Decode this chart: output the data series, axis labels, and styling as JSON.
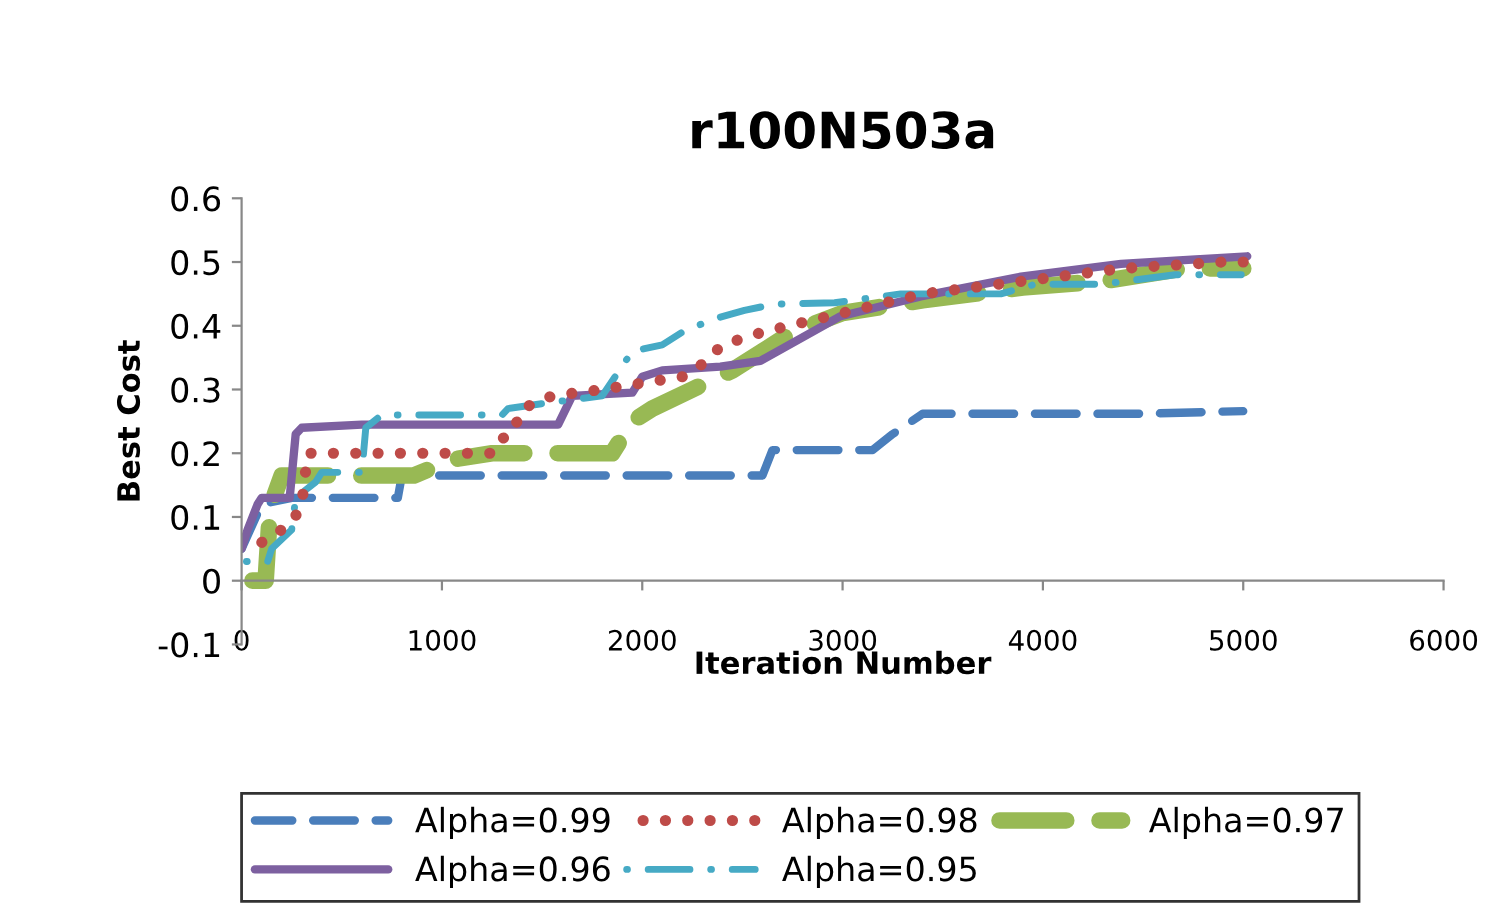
{
  "chart_data": {
    "type": "line",
    "title": "r100N503a",
    "xlabel": "Iteration Number",
    "ylabel": "Best Cost",
    "xlim": [
      0,
      6000
    ],
    "xticks": [
      0,
      1000,
      2000,
      3000,
      4000,
      5000,
      6000
    ],
    "ylim": [
      -0.1,
      0.6
    ],
    "yticks": [
      -0.1,
      0,
      0.1,
      0.2,
      0.3,
      0.4,
      0.5,
      0.6
    ],
    "grid": false,
    "legend": "bottom",
    "marker": "none",
    "series": [
      {
        "name": "Alpha=0.99",
        "color": "#4a7ebb",
        "line_style": "dashed",
        "x": [
          0,
          100,
          250,
          780,
          800,
          2600,
          2650,
          3150,
          3250,
          3400,
          4500,
          5000
        ],
        "values": [
          0.05,
          0.12,
          0.13,
          0.13,
          0.165,
          0.165,
          0.205,
          0.205,
          0.23,
          0.262,
          0.262,
          0.266
        ]
      },
      {
        "name": "Alpha=0.98",
        "color": "#be4b48",
        "line_style": "dotted",
        "x": [
          0,
          100,
          250,
          300,
          330,
          1250,
          1280,
          1350,
          1400,
          1550,
          1800,
          2000,
          2200,
          2300,
          2400,
          2600,
          3000,
          3400,
          3900,
          4400,
          4900,
          5000
        ],
        "values": [
          0.05,
          0.06,
          0.09,
          0.12,
          0.2,
          0.2,
          0.22,
          0.23,
          0.27,
          0.29,
          0.3,
          0.31,
          0.32,
          0.34,
          0.37,
          0.39,
          0.42,
          0.45,
          0.47,
          0.49,
          0.5,
          0.5
        ]
      },
      {
        "name": "Alpha=0.97",
        "color": "#98b954",
        "line_style": "dashed",
        "x": [
          0,
          120,
          140,
          160,
          200,
          860,
          1050,
          1250,
          1850,
          1950,
          2050,
          2250,
          2450,
          2600,
          2750,
          3000,
          3400,
          3900,
          4300,
          4700,
          5000
        ],
        "values": [
          0.0,
          0.0,
          0.1,
          0.13,
          0.165,
          0.165,
          0.19,
          0.2,
          0.2,
          0.25,
          0.27,
          0.3,
          0.33,
          0.36,
          0.39,
          0.42,
          0.44,
          0.46,
          0.47,
          0.49,
          0.49
        ]
      },
      {
        "name": "Alpha=0.96",
        "color": "#7d60a0",
        "line_style": "solid",
        "x": [
          0,
          30,
          80,
          100,
          240,
          270,
          300,
          600,
          1580,
          1650,
          1950,
          2000,
          2100,
          2390,
          2590,
          2990,
          3390,
          3890,
          4390,
          5020
        ],
        "values": [
          0.05,
          0.08,
          0.12,
          0.13,
          0.13,
          0.23,
          0.24,
          0.245,
          0.245,
          0.29,
          0.295,
          0.32,
          0.33,
          0.336,
          0.345,
          0.415,
          0.446,
          0.477,
          0.497,
          0.509
        ]
      },
      {
        "name": "Alpha=0.95",
        "color": "#46aac5",
        "line_style": "dashdot",
        "x": [
          0,
          130,
          150,
          250,
          270,
          370,
          400,
          600,
          620,
          700,
          900,
          1300,
          1330,
          1550,
          1800,
          1950,
          2100,
          2200,
          2350,
          2510,
          2660,
          2960,
          3290,
          3790,
          3960,
          4290,
          4660,
          4990
        ],
        "values": [
          0.03,
          0.03,
          0.05,
          0.08,
          0.13,
          0.155,
          0.17,
          0.17,
          0.24,
          0.26,
          0.26,
          0.26,
          0.27,
          0.28,
          0.29,
          0.36,
          0.37,
          0.39,
          0.41,
          0.424,
          0.434,
          0.436,
          0.45,
          0.45,
          0.465,
          0.465,
          0.48,
          0.48
        ]
      }
    ]
  }
}
